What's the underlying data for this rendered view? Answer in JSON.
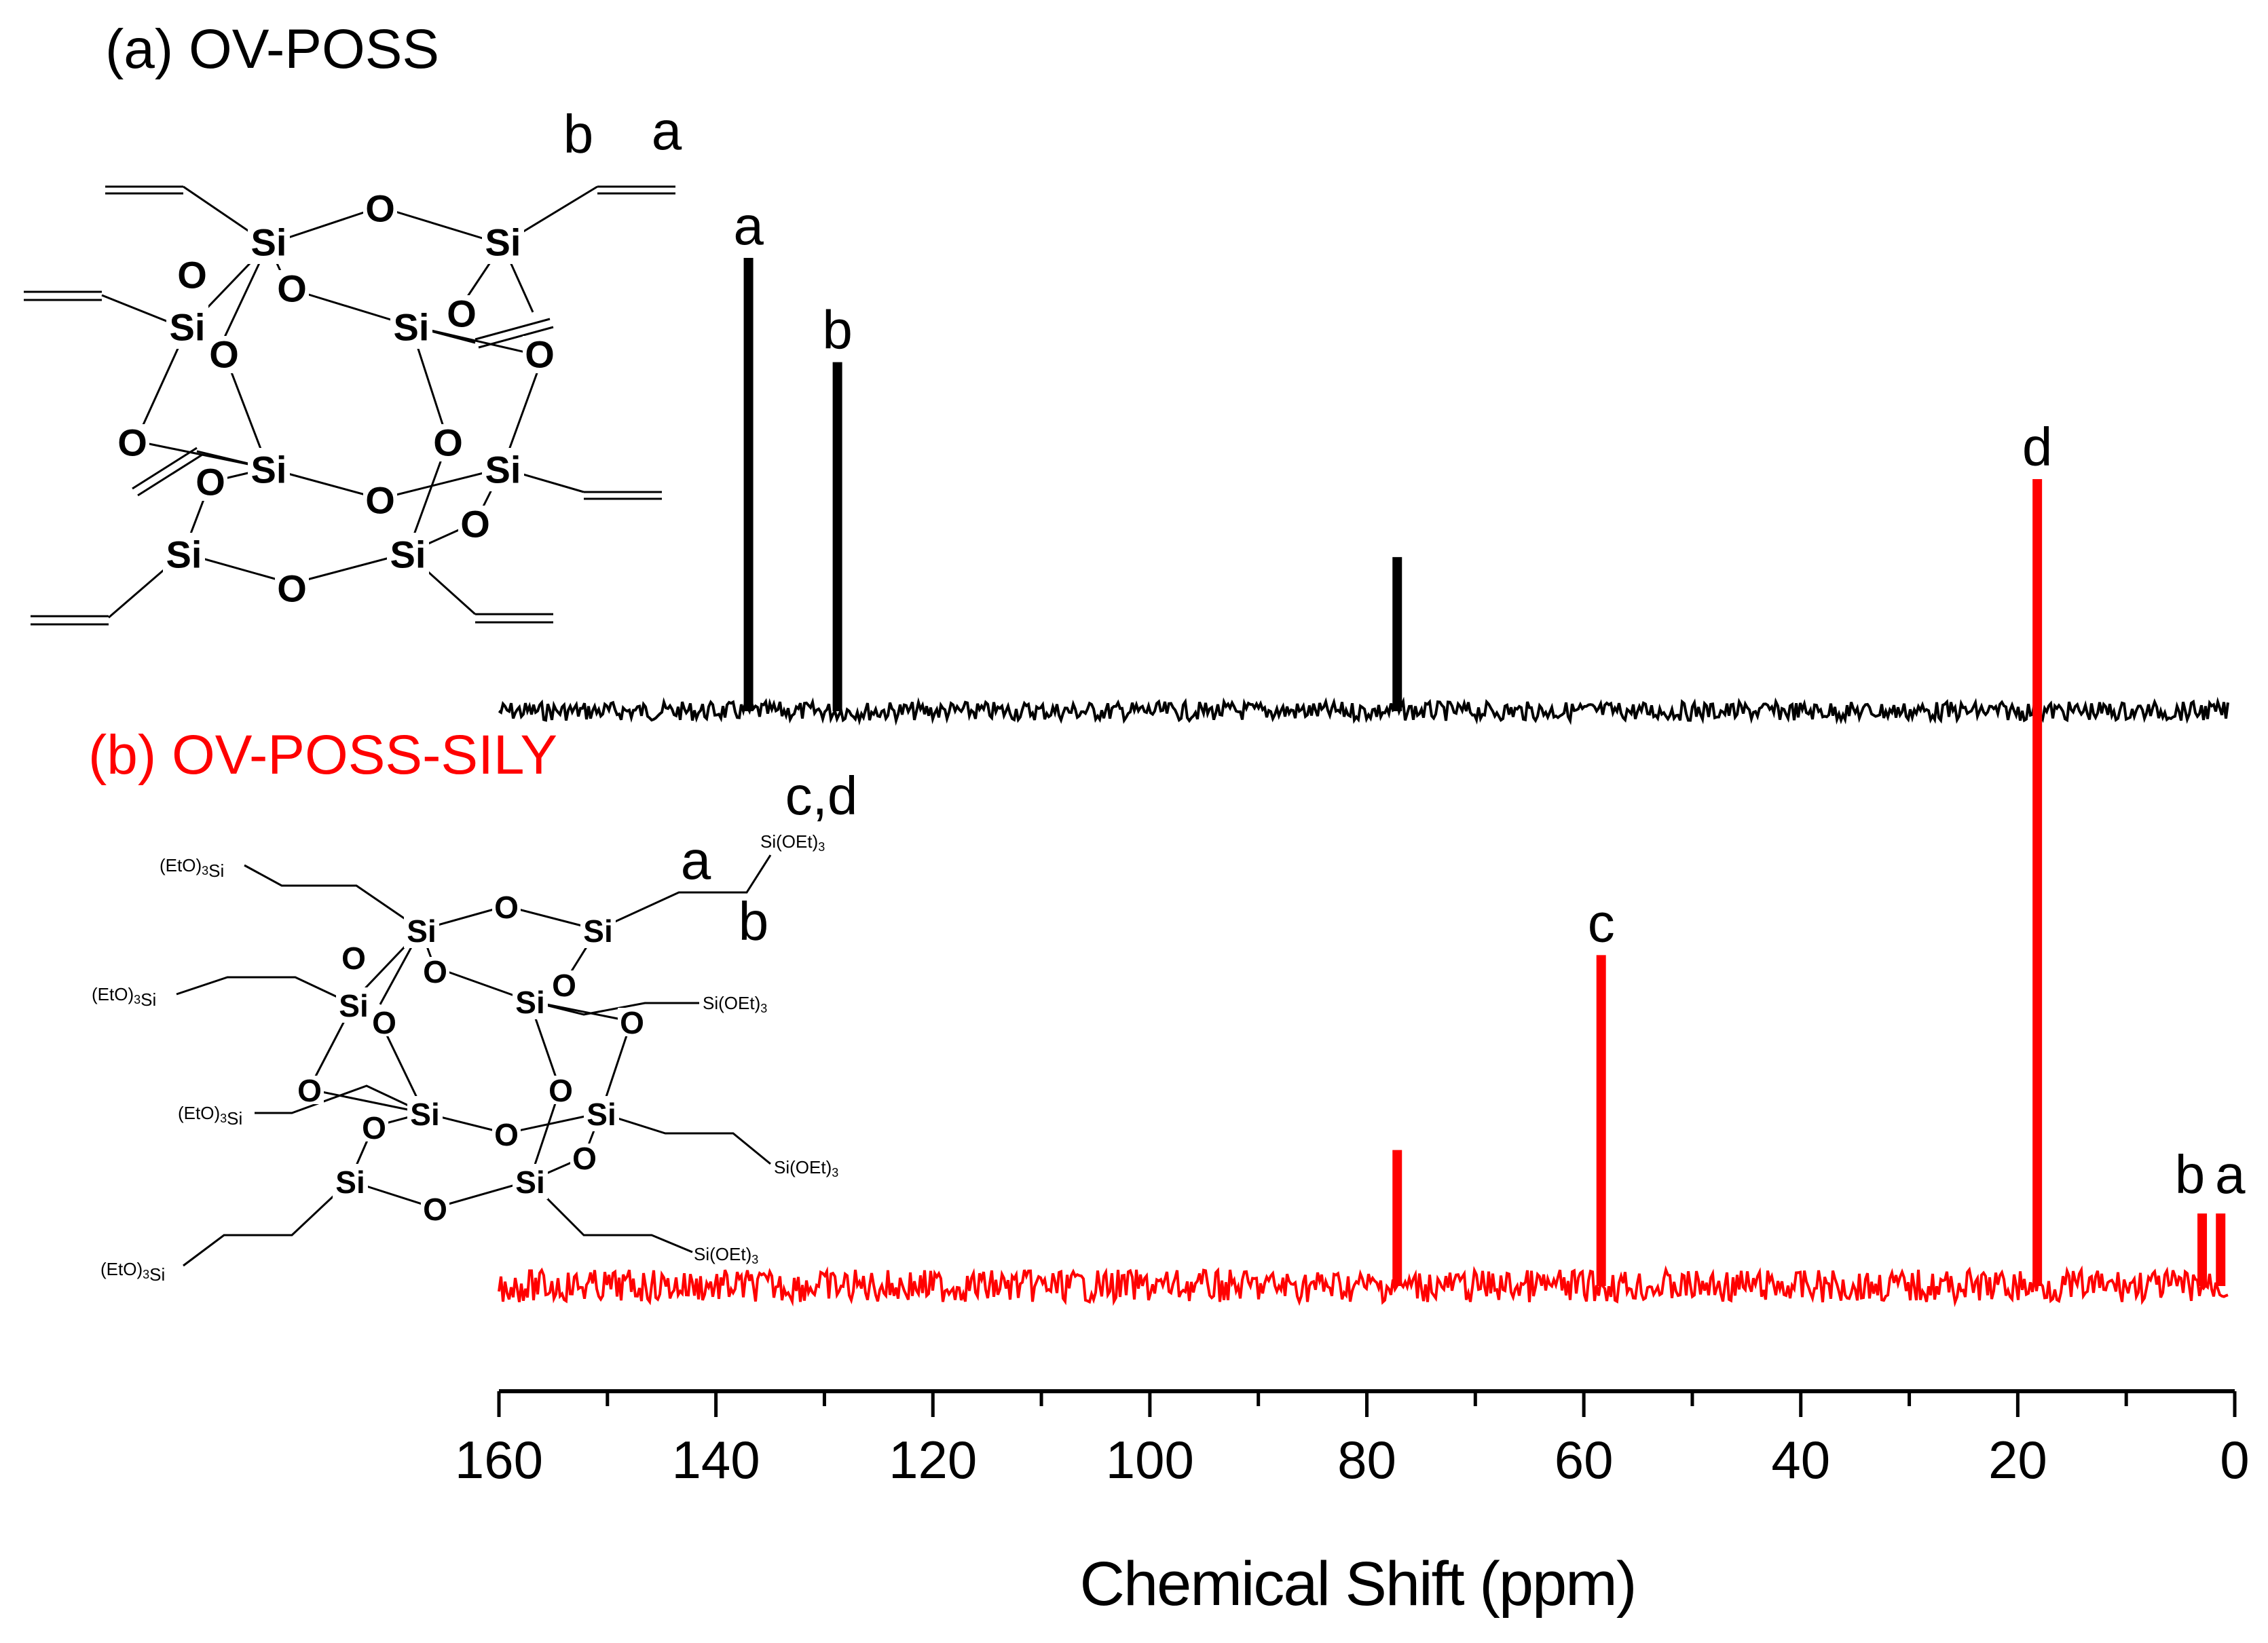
{
  "chart_data": {
    "type": "line",
    "xlabel": "Chemical Shift (ppm)",
    "xlim": [
      160,
      0
    ],
    "x_ticks": [
      160,
      140,
      120,
      100,
      80,
      60,
      40,
      20,
      0
    ],
    "x_minor_step": 10,
    "grid": false,
    "series": [
      {
        "name": "(a) OV-POSS",
        "color": "#000000",
        "peaks": [
          {
            "x": 137.0,
            "height": 1.0,
            "label": "a"
          },
          {
            "x": 128.8,
            "height": 0.77,
            "label": "b"
          },
          {
            "x": 77.2,
            "height": 0.34,
            "label": ""
          }
        ]
      },
      {
        "name": "(b) OV-POSS-SILY",
        "color": "#ff0000",
        "peaks": [
          {
            "x": 77.2,
            "height": 0.3,
            "label": ""
          },
          {
            "x": 58.4,
            "height": 0.73,
            "label": "c"
          },
          {
            "x": 18.2,
            "height": 1.78,
            "label": "d"
          },
          {
            "x": 3.0,
            "height": 0.16,
            "label": "b"
          },
          {
            "x": 1.3,
            "height": 0.16,
            "label": "a"
          }
        ]
      }
    ]
  },
  "structures": {
    "ov_poss": {
      "si": "Si",
      "o": "O",
      "position_labels": [
        "b",
        "a"
      ]
    },
    "ov_poss_sily": {
      "si": "Si",
      "o": "O",
      "substituent": "Si(OEt)3",
      "substituent_left": "(EtO)3Si",
      "position_labels": [
        "c,d",
        "a",
        "b"
      ]
    }
  }
}
